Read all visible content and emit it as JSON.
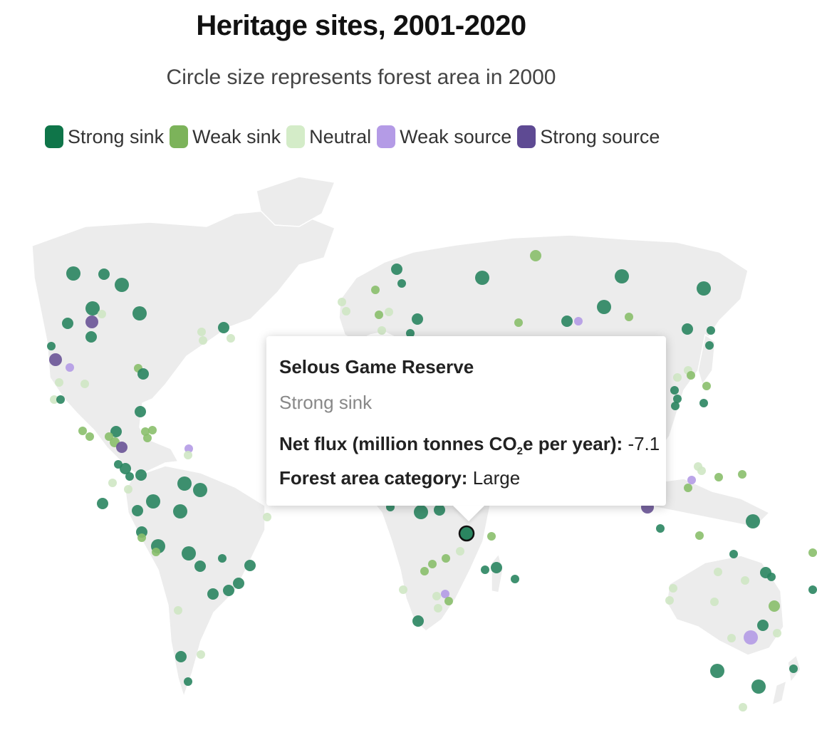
{
  "title": "Heritage sites, 2001-2020",
  "subtitle": "Circle size represents forest area in 2000",
  "legend": [
    {
      "label": "Strong sink",
      "color": "#0f7549"
    },
    {
      "label": "Weak sink",
      "color": "#7cb35a"
    },
    {
      "label": "Neutral",
      "color": "#d4ecc8"
    },
    {
      "label": "Weak source",
      "color": "#b49be6"
    },
    {
      "label": "Strong source",
      "color": "#5e4a93"
    }
  ],
  "tooltip": {
    "name": "Selous Game Reserve",
    "category": "Strong sink",
    "flux_label_before": "Net flux (million tonnes CO",
    "flux_label_sub": "2",
    "flux_label_after": "e per year):",
    "flux_value": "-7.1",
    "forest_label": "Forest area category:",
    "forest_value": "Large"
  },
  "map": {
    "land_color": "#ececec",
    "site_categories": {
      "strong_sink": "#2a8560",
      "weak_sink": "#8abf6c",
      "neutral": "#cfe7c4",
      "weak_source": "#b49be6",
      "strong_source": "#6a5497"
    }
  }
}
